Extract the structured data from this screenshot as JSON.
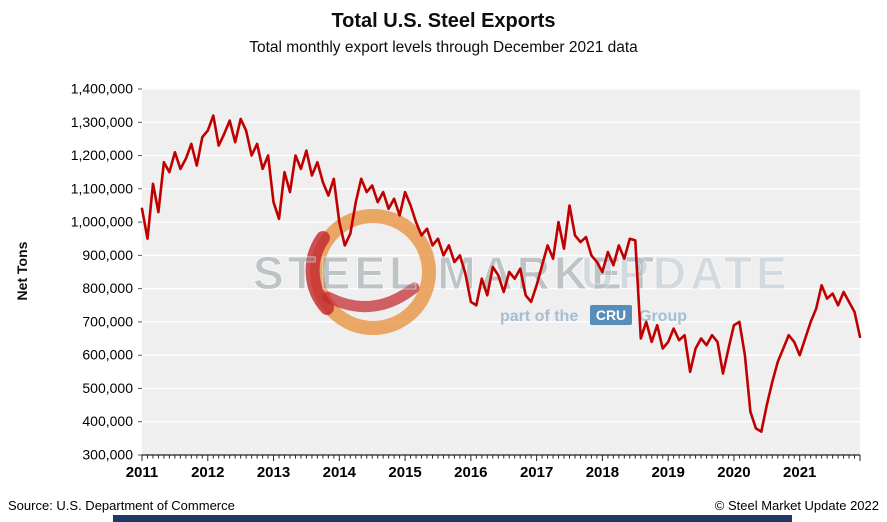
{
  "header": {
    "title": "Total U.S. Steel Exports",
    "subtitle": "Total monthly export levels through December 2021 data"
  },
  "watermark": {
    "text_main": "STEEL MARKET",
    "text_update": "UPDATE",
    "tagline_prefix": "part of the",
    "tagline_cru": "CRU",
    "tagline_suffix": "Group",
    "logo": "red-orange-ring-swoosh-logo"
  },
  "footer": {
    "source": "Source: U.S. Department of Commerce",
    "copyright": "© Steel Market Update 2022",
    "bar_color": "#1F3864"
  },
  "chart_data": {
    "type": "line",
    "title": "Total U.S. Steel Exports",
    "subtitle": "Total monthly export levels through December 2021 data",
    "xlabel": "",
    "ylabel": "Net Tons",
    "ylim": [
      300000,
      1400000
    ],
    "ytick_step": 100000,
    "x_start": "2011-01",
    "x_end": "2021-12",
    "x_interval": "month",
    "n_points": 132,
    "x_years": [
      2011,
      2012,
      2013,
      2014,
      2015,
      2016,
      2017,
      2018,
      2019,
      2020,
      2021
    ],
    "grid": true,
    "plot_bg": "#EFEFEF",
    "grid_color": "#FFFFFF",
    "legend": "none",
    "series": [
      {
        "name": "Total U.S. Steel Exports (Net Tons)",
        "color": "#C00000",
        "values": [
          1040000,
          950000,
          1115000,
          1030000,
          1180000,
          1150000,
          1210000,
          1160000,
          1190000,
          1235000,
          1170000,
          1255000,
          1275000,
          1320000,
          1230000,
          1265000,
          1305000,
          1240000,
          1310000,
          1275000,
          1200000,
          1235000,
          1160000,
          1200000,
          1060000,
          1010000,
          1150000,
          1090000,
          1200000,
          1160000,
          1215000,
          1140000,
          1180000,
          1120000,
          1080000,
          1130000,
          1000000,
          930000,
          965000,
          1060000,
          1130000,
          1090000,
          1110000,
          1060000,
          1090000,
          1040000,
          1070000,
          1020000,
          1090000,
          1050000,
          1000000,
          960000,
          980000,
          930000,
          950000,
          900000,
          930000,
          880000,
          900000,
          845000,
          760000,
          750000,
          830000,
          780000,
          865000,
          840000,
          790000,
          850000,
          830000,
          860000,
          780000,
          760000,
          810000,
          870000,
          930000,
          890000,
          1000000,
          920000,
          1050000,
          960000,
          940000,
          955000,
          900000,
          880000,
          850000,
          910000,
          870000,
          930000,
          890000,
          950000,
          945000,
          650000,
          700000,
          640000,
          690000,
          620000,
          640000,
          680000,
          645000,
          660000,
          550000,
          620000,
          650000,
          630000,
          660000,
          640000,
          545000,
          620000,
          690000,
          700000,
          600000,
          430000,
          380000,
          370000,
          450000,
          520000,
          580000,
          620000,
          660000,
          640000,
          600000,
          650000,
          700000,
          740000,
          810000,
          770000,
          785000,
          750000,
          790000,
          760000,
          730000,
          655000
        ]
      }
    ]
  }
}
